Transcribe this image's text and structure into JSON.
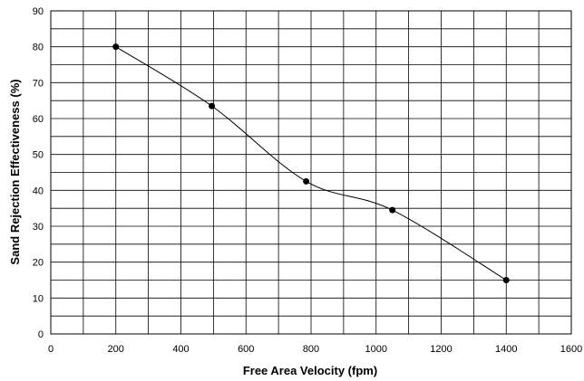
{
  "chart_data": {
    "type": "line",
    "title": "",
    "xlabel": "Free Area Velocity (fpm)",
    "ylabel": "Sand Rejection Effectiveness (%)",
    "xlim": [
      0,
      1600
    ],
    "ylim": [
      0,
      90
    ],
    "x_ticks": [
      0,
      200,
      400,
      600,
      800,
      1000,
      1200,
      1400,
      1600
    ],
    "y_ticks": [
      0,
      10,
      20,
      30,
      40,
      50,
      60,
      70,
      80,
      90
    ],
    "x_minor_step": 100,
    "y_minor_step": 5,
    "grid": true,
    "legend": "none",
    "series": [
      {
        "color": "#000000",
        "smooth": true,
        "marker": "circle",
        "points": [
          {
            "x": 200,
            "y": 80
          },
          {
            "x": 495,
            "y": 63.5
          },
          {
            "x": 785,
            "y": 42.5
          },
          {
            "x": 1050,
            "y": 34.5
          },
          {
            "x": 1400,
            "y": 15
          }
        ]
      }
    ]
  }
}
